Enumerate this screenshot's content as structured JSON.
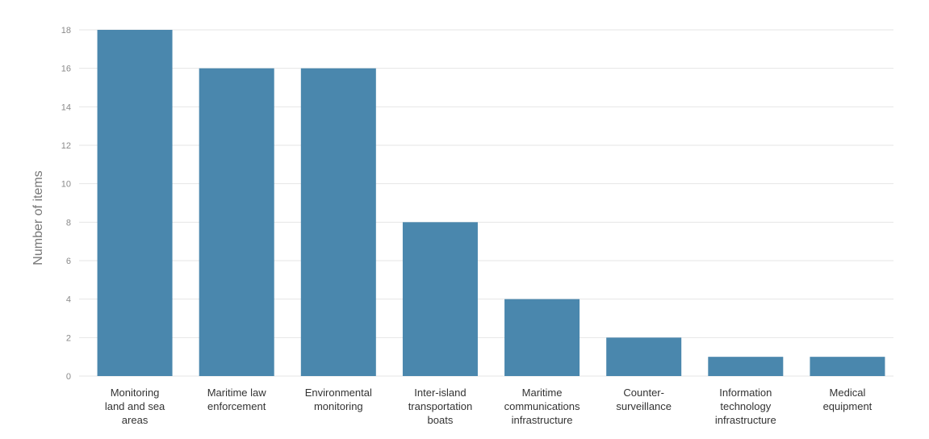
{
  "chart_data": {
    "type": "bar",
    "categories": [
      "Monitoring land and sea areas",
      "Maritime law enforcement",
      "Environmental monitoring",
      "Inter-island transportation boats",
      "Maritime communications infrastructure",
      "Counter-surveillance",
      "Information technology infrastructure",
      "Medical equipment"
    ],
    "category_lines": [
      [
        "Monitoring",
        "land and sea",
        "areas"
      ],
      [
        "Maritime law",
        "enforcement"
      ],
      [
        "Environmental",
        "monitoring"
      ],
      [
        "Inter-island",
        "transportation",
        "boats"
      ],
      [
        "Maritime",
        "communications",
        "infrastructure"
      ],
      [
        "Counter-",
        "surveillance"
      ],
      [
        "Information",
        "technology",
        "infrastructure"
      ],
      [
        "Medical",
        "equipment"
      ]
    ],
    "values": [
      18,
      16,
      16,
      8,
      4,
      2,
      1,
      1
    ],
    "title": "",
    "xlabel": "",
    "ylabel": "Number of items",
    "ylim": [
      0,
      18
    ],
    "yticks": [
      0,
      2,
      4,
      6,
      8,
      10,
      12,
      14,
      16,
      18
    ],
    "grid": true,
    "bar_color": "#4a87ad",
    "grid_color": "#e6e6e6"
  }
}
